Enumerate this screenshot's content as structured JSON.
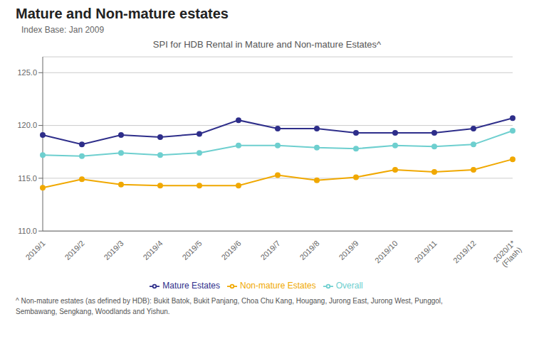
{
  "chart_data": {
    "type": "line",
    "title": "Mature and Non-mature estates",
    "subtitle": "Index Base: Jan 2009",
    "annotations": [
      "SPI for HDB Rental in Mature and Non-mature Estates^",
      "^ Non-mature estates (as defined by HDB): Bukit Batok, Bukit Panjang, Choa Chu Kang, Hougang, Jurong East, Jurong West, Punggol,\nSembawang, Sengkang, Woodlands and Yishun."
    ],
    "categories": [
      "2019/1",
      "2019/2",
      "2019/3",
      "2019/4",
      "2019/5",
      "2019/6",
      "2019/7",
      "2019/8",
      "2019/9",
      "2019/10",
      "2019/11",
      "2019/12",
      "2020/1*\n(Flash)"
    ],
    "series": [
      {
        "name": "Overall",
        "color": "#6ecfcf",
        "marker": "circle",
        "values": [
          117.2,
          117.1,
          117.4,
          117.2,
          117.4,
          118.1,
          118.1,
          117.9,
          117.8,
          118.1,
          118.0,
          118.2,
          119.5
        ]
      },
      {
        "name": "Mature Estates",
        "color": "#2e2e8a",
        "marker": "circle",
        "values": [
          119.1,
          118.2,
          119.1,
          118.9,
          119.2,
          120.5,
          119.7,
          119.7,
          119.3,
          119.3,
          119.3,
          119.7,
          120.7
        ]
      },
      {
        "name": "Non-mature Estates",
        "color": "#f0a800",
        "marker": "circle",
        "values": [
          114.1,
          114.9,
          114.4,
          114.3,
          114.3,
          114.3,
          115.3,
          114.8,
          115.1,
          115.8,
          115.6,
          115.8,
          116.8
        ]
      }
    ],
    "ylim": [
      110.0,
      126.5
    ],
    "yticks": [
      {
        "value": 110,
        "label": "110.0"
      },
      {
        "value": 115,
        "label": "115.0"
      },
      {
        "value": 120,
        "label": "120.0"
      },
      {
        "value": 125,
        "label": "125.0"
      }
    ],
    "grid": true,
    "legend": "bottom"
  }
}
